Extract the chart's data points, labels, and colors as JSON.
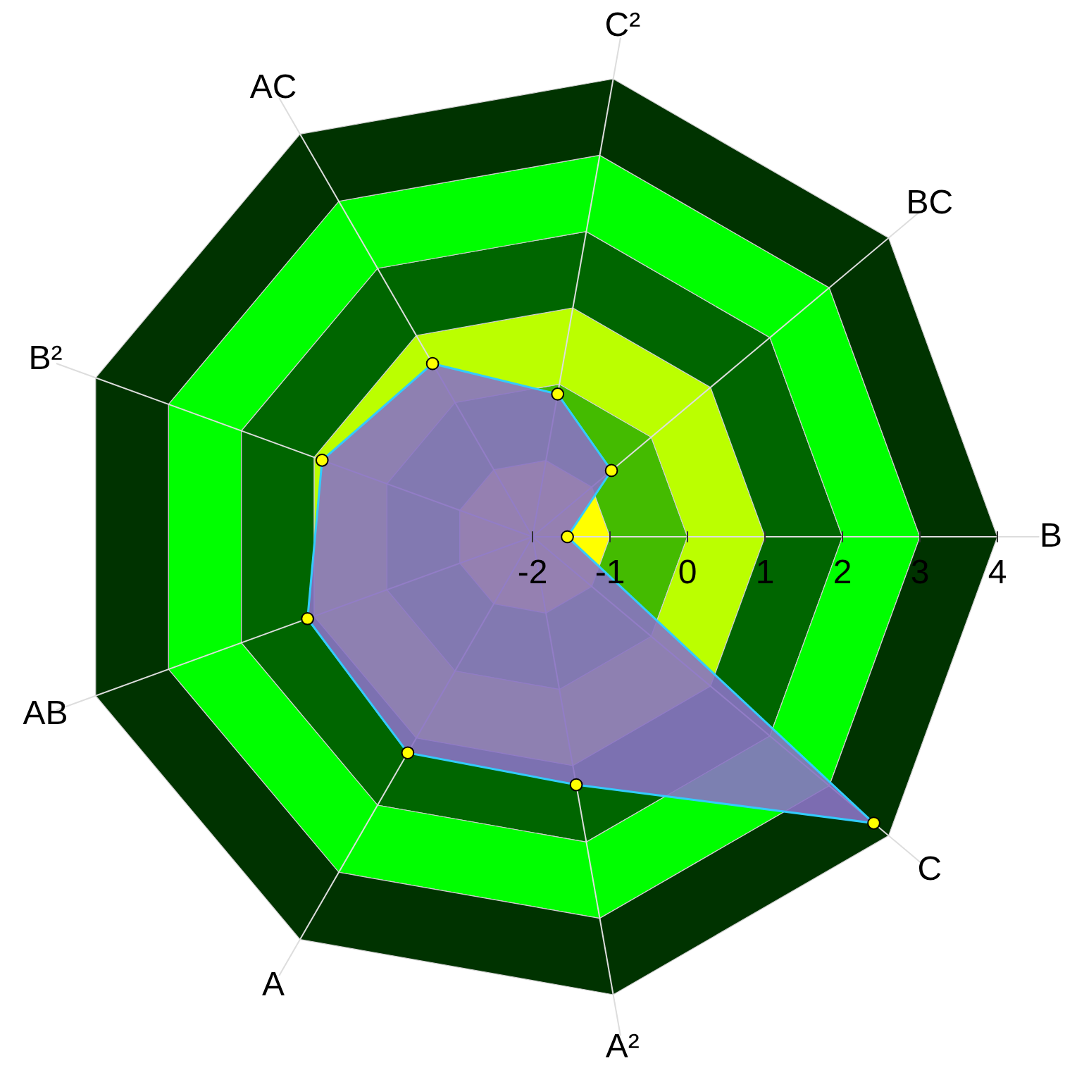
{
  "chart_data": {
    "type": "radar",
    "categories": [
      "C²",
      "BC",
      "B",
      "C",
      "A²",
      "A",
      "AB",
      "B²",
      "AC"
    ],
    "ylim": [
      -2,
      4
    ],
    "yticks": [
      -2,
      -1,
      0,
      1,
      2,
      3,
      4
    ],
    "marker": "circle",
    "series": [
      {
        "color": "#8a72c4",
        "values": [
          -0.13,
          -0.67,
          -1.55,
          3.75,
          1.25,
          1.22,
          1.09,
          0.89,
          0.58
        ]
      }
    ]
  }
}
